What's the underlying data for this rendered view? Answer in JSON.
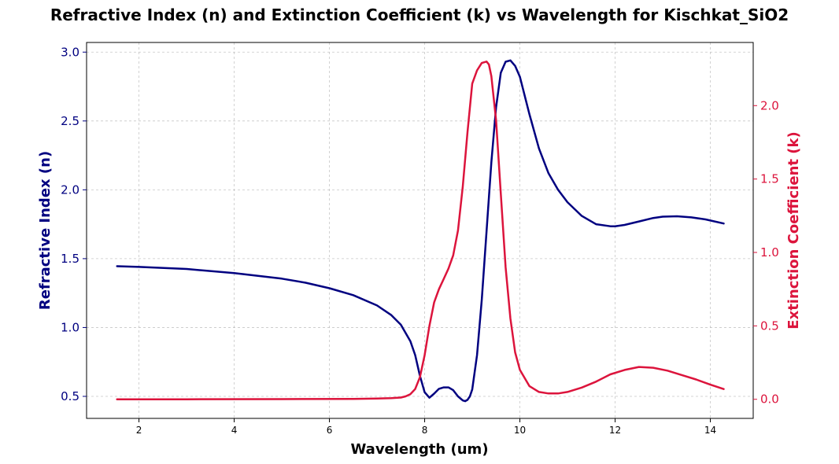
{
  "chart_data": {
    "type": "line",
    "title": "Refractive Index (n) and Extinction Coefficient (k) vs Wavelength for Kischkat_SiO2",
    "xlabel": "Wavelength (um)",
    "ylabel_left": "Refractive Index (n)",
    "ylabel_right": "Extinction Coefficient (k)",
    "xlim": [
      0.9,
      14.9
    ],
    "ylim_left": [
      0.34,
      3.07
    ],
    "ylim_right": [
      -0.13,
      2.43
    ],
    "x_ticks": [
      2,
      4,
      6,
      8,
      10,
      12,
      14
    ],
    "y_left_ticks": [
      0.5,
      1.0,
      1.5,
      2.0,
      2.5,
      3.0
    ],
    "y_right_ticks": [
      0.0,
      0.5,
      1.0,
      1.5,
      2.0
    ],
    "grid": true,
    "colors": {
      "n": "#000080",
      "k": "#dc143c",
      "left_axis": "#000080",
      "right_axis": "#dc143c"
    },
    "series": [
      {
        "axis": "left",
        "color": "#000080",
        "x": [
          1.54,
          2.0,
          3.0,
          4.0,
          5.0,
          5.5,
          6.0,
          6.5,
          7.0,
          7.3,
          7.5,
          7.7,
          7.8,
          7.9,
          8.0,
          8.1,
          8.2,
          8.3,
          8.4,
          8.5,
          8.6,
          8.7,
          8.8,
          8.85,
          8.9,
          8.95,
          9.0,
          9.1,
          9.2,
          9.3,
          9.4,
          9.5,
          9.6,
          9.7,
          9.8,
          9.9,
          10.0,
          10.2,
          10.4,
          10.6,
          10.8,
          11.0,
          11.3,
          11.6,
          11.9,
          12.0,
          12.2,
          12.5,
          12.8,
          13.0,
          13.3,
          13.6,
          13.9,
          14.28
        ],
        "y": [
          1.445,
          1.44,
          1.425,
          1.395,
          1.355,
          1.325,
          1.285,
          1.235,
          1.16,
          1.09,
          1.02,
          0.9,
          0.8,
          0.65,
          0.53,
          0.49,
          0.52,
          0.555,
          0.565,
          0.565,
          0.545,
          0.5,
          0.47,
          0.465,
          0.475,
          0.5,
          0.55,
          0.8,
          1.2,
          1.7,
          2.2,
          2.6,
          2.85,
          2.93,
          2.94,
          2.9,
          2.82,
          2.55,
          2.3,
          2.12,
          2.0,
          1.91,
          1.81,
          1.75,
          1.735,
          1.735,
          1.745,
          1.77,
          1.795,
          1.805,
          1.808,
          1.8,
          1.785,
          1.755
        ]
      },
      {
        "axis": "right",
        "color": "#dc143c",
        "x": [
          1.54,
          3.0,
          5.0,
          6.5,
          7.0,
          7.3,
          7.5,
          7.6,
          7.7,
          7.8,
          7.9,
          8.0,
          8.1,
          8.2,
          8.3,
          8.4,
          8.5,
          8.6,
          8.7,
          8.8,
          8.9,
          9.0,
          9.1,
          9.2,
          9.3,
          9.35,
          9.4,
          9.5,
          9.6,
          9.7,
          9.8,
          9.9,
          10.0,
          10.2,
          10.4,
          10.6,
          10.8,
          11.0,
          11.3,
          11.6,
          11.9,
          12.2,
          12.5,
          12.8,
          13.1,
          13.4,
          13.7,
          14.0,
          14.28
        ],
        "y": [
          0.0,
          0.0,
          0.001,
          0.003,
          0.005,
          0.008,
          0.012,
          0.02,
          0.035,
          0.07,
          0.15,
          0.3,
          0.5,
          0.66,
          0.75,
          0.82,
          0.89,
          0.98,
          1.15,
          1.45,
          1.82,
          2.15,
          2.24,
          2.29,
          2.3,
          2.28,
          2.2,
          1.9,
          1.4,
          0.9,
          0.55,
          0.32,
          0.2,
          0.09,
          0.05,
          0.04,
          0.04,
          0.05,
          0.08,
          0.12,
          0.17,
          0.2,
          0.22,
          0.215,
          0.195,
          0.165,
          0.135,
          0.1,
          0.07
        ]
      }
    ]
  }
}
